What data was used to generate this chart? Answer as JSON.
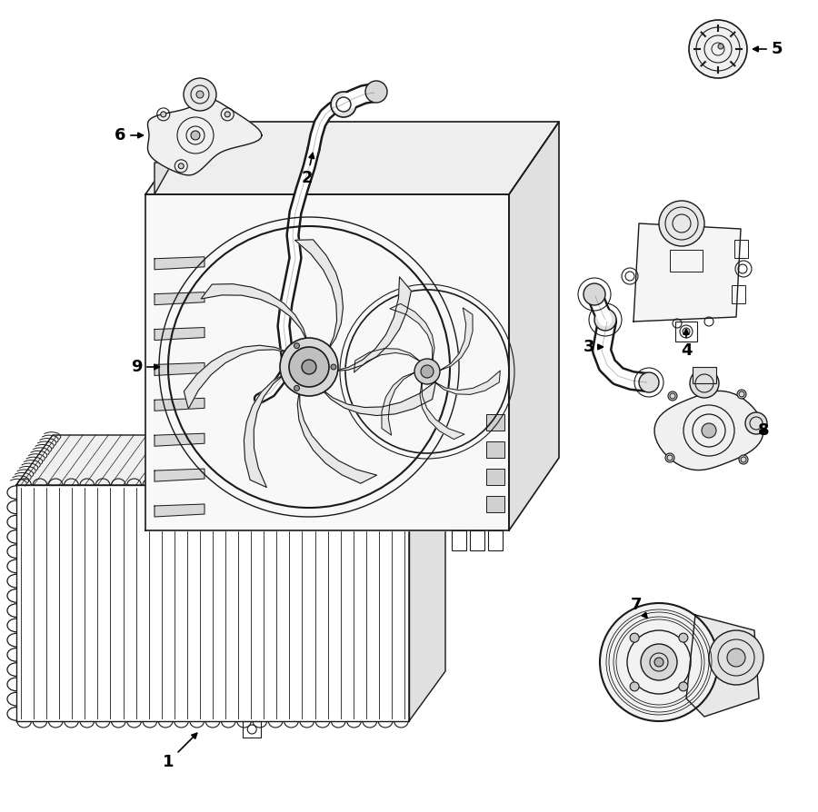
{
  "bg_color": "#ffffff",
  "line_color": "#1a1a1a",
  "lw": 1.0,
  "figsize": [
    9.0,
    8.94
  ],
  "dpi": 100,
  "xlim": [
    0,
    900
  ],
  "ylim": [
    0,
    894
  ]
}
